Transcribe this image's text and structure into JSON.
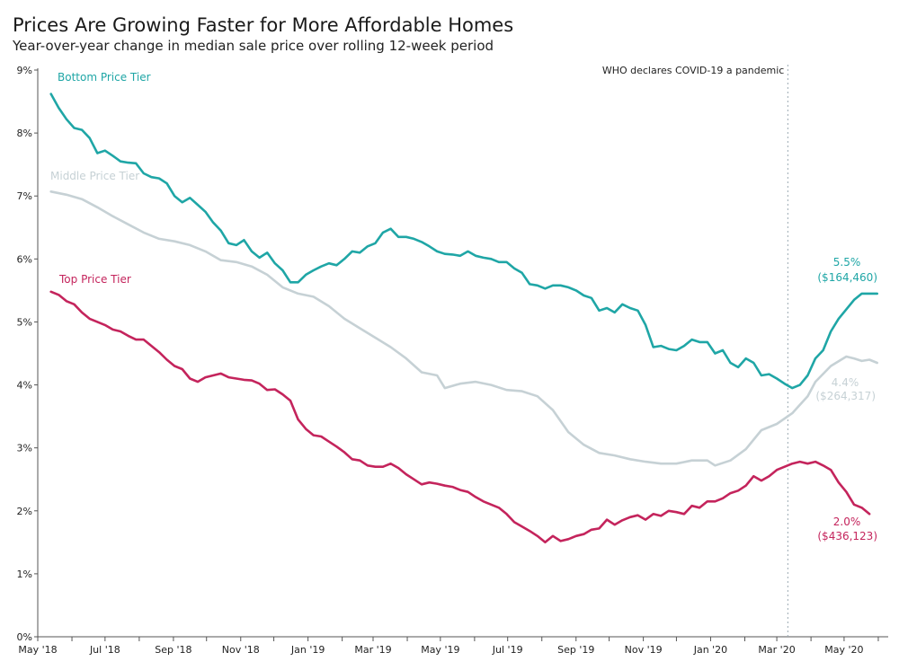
{
  "chart_data": {
    "type": "line",
    "title": "Prices Are Growing Faster for More Affordable Homes",
    "subtitle": "Year-over-year change in median sale price over rolling 12-week period",
    "xlabel": "",
    "ylabel": "",
    "ylim": [
      0,
      9
    ],
    "grid": false,
    "y_ticks": [
      "0%",
      "1%",
      "2%",
      "3%",
      "4%",
      "5%",
      "6%",
      "7%",
      "8%",
      "9%"
    ],
    "x_ticks": [
      "May '18",
      "Jul '18",
      "Sep '18",
      "Nov '18",
      "Jan '19",
      "Mar '19",
      "May '19",
      "Jul '19",
      "Sep '19",
      "Nov '19",
      "Jan '20",
      "Mar '20",
      "May '20"
    ],
    "annotation": {
      "x": "2020-03-11",
      "label": "WHO declares COVID-19 a pandemic"
    },
    "series": [
      {
        "name": "Bottom Price Tier",
        "color": "#1fa6a6",
        "end_value_label": "5.5%",
        "end_price_label": "($164,460)",
        "points": [
          [
            "2018-05-13",
            8.62
          ],
          [
            "2018-05-20",
            8.4
          ],
          [
            "2018-05-27",
            8.22
          ],
          [
            "2018-06-03",
            8.08
          ],
          [
            "2018-06-10",
            8.05
          ],
          [
            "2018-06-17",
            7.92
          ],
          [
            "2018-06-24",
            7.68
          ],
          [
            "2018-07-01",
            7.72
          ],
          [
            "2018-07-08",
            7.64
          ],
          [
            "2018-07-15",
            7.55
          ],
          [
            "2018-07-22",
            7.53
          ],
          [
            "2018-07-29",
            7.52
          ],
          [
            "2018-08-05",
            7.36
          ],
          [
            "2018-08-12",
            7.3
          ],
          [
            "2018-08-19",
            7.28
          ],
          [
            "2018-08-26",
            7.2
          ],
          [
            "2018-09-02",
            7.0
          ],
          [
            "2018-09-09",
            6.9
          ],
          [
            "2018-09-16",
            6.97
          ],
          [
            "2018-09-23",
            6.86
          ],
          [
            "2018-09-30",
            6.75
          ],
          [
            "2018-10-07",
            6.58
          ],
          [
            "2018-10-14",
            6.45
          ],
          [
            "2018-10-21",
            6.25
          ],
          [
            "2018-10-28",
            6.22
          ],
          [
            "2018-11-04",
            6.3
          ],
          [
            "2018-11-11",
            6.12
          ],
          [
            "2018-11-18",
            6.02
          ],
          [
            "2018-11-25",
            6.1
          ],
          [
            "2018-12-02",
            5.93
          ],
          [
            "2018-12-09",
            5.82
          ],
          [
            "2018-12-16",
            5.63
          ],
          [
            "2018-12-23",
            5.63
          ],
          [
            "2018-12-30",
            5.75
          ],
          [
            "2019-01-06",
            5.82
          ],
          [
            "2019-01-13",
            5.88
          ],
          [
            "2019-01-20",
            5.93
          ],
          [
            "2019-01-27",
            5.9
          ],
          [
            "2019-02-03",
            6.0
          ],
          [
            "2019-02-10",
            6.12
          ],
          [
            "2019-02-17",
            6.1
          ],
          [
            "2019-02-24",
            6.2
          ],
          [
            "2019-03-03",
            6.25
          ],
          [
            "2019-03-10",
            6.42
          ],
          [
            "2019-03-17",
            6.48
          ],
          [
            "2019-03-24",
            6.35
          ],
          [
            "2019-03-31",
            6.35
          ],
          [
            "2019-04-07",
            6.32
          ],
          [
            "2019-04-14",
            6.27
          ],
          [
            "2019-04-21",
            6.2
          ],
          [
            "2019-04-28",
            6.12
          ],
          [
            "2019-05-05",
            6.08
          ],
          [
            "2019-05-12",
            6.07
          ],
          [
            "2019-05-19",
            6.05
          ],
          [
            "2019-05-26",
            6.12
          ],
          [
            "2019-06-02",
            6.05
          ],
          [
            "2019-06-09",
            6.02
          ],
          [
            "2019-06-16",
            6.0
          ],
          [
            "2019-06-23",
            5.95
          ],
          [
            "2019-06-30",
            5.95
          ],
          [
            "2019-07-07",
            5.85
          ],
          [
            "2019-07-14",
            5.78
          ],
          [
            "2019-07-21",
            5.6
          ],
          [
            "2019-07-28",
            5.58
          ],
          [
            "2019-08-04",
            5.53
          ],
          [
            "2019-08-11",
            5.58
          ],
          [
            "2019-08-18",
            5.58
          ],
          [
            "2019-08-25",
            5.55
          ],
          [
            "2019-09-01",
            5.5
          ],
          [
            "2019-09-08",
            5.42
          ],
          [
            "2019-09-15",
            5.38
          ],
          [
            "2019-09-22",
            5.18
          ],
          [
            "2019-09-29",
            5.22
          ],
          [
            "2019-10-06",
            5.15
          ],
          [
            "2019-10-13",
            5.28
          ],
          [
            "2019-10-20",
            5.22
          ],
          [
            "2019-10-27",
            5.18
          ],
          [
            "2019-11-03",
            4.95
          ],
          [
            "2019-11-10",
            4.6
          ],
          [
            "2019-11-17",
            4.62
          ],
          [
            "2019-11-24",
            4.57
          ],
          [
            "2019-12-01",
            4.55
          ],
          [
            "2019-12-08",
            4.62
          ],
          [
            "2019-12-15",
            4.72
          ],
          [
            "2019-12-22",
            4.68
          ],
          [
            "2019-12-29",
            4.68
          ],
          [
            "2020-01-05",
            4.5
          ],
          [
            "2020-01-12",
            4.55
          ],
          [
            "2020-01-19",
            4.35
          ],
          [
            "2020-01-26",
            4.28
          ],
          [
            "2020-02-02",
            4.42
          ],
          [
            "2020-02-09",
            4.35
          ],
          [
            "2020-02-16",
            4.15
          ],
          [
            "2020-02-23",
            4.17
          ],
          [
            "2020-03-01",
            4.1
          ],
          [
            "2020-03-08",
            4.02
          ],
          [
            "2020-03-15",
            3.95
          ],
          [
            "2020-03-22",
            4.0
          ],
          [
            "2020-03-29",
            4.15
          ],
          [
            "2020-04-05",
            4.42
          ],
          [
            "2020-04-12",
            4.55
          ],
          [
            "2020-04-19",
            4.85
          ],
          [
            "2020-04-26",
            5.05
          ],
          [
            "2020-05-03",
            5.2
          ],
          [
            "2020-05-10",
            5.35
          ],
          [
            "2020-05-17",
            5.45
          ],
          [
            "2020-05-24",
            5.45
          ],
          [
            "2020-05-31",
            5.45
          ]
        ]
      },
      {
        "name": "Middle Price Tier",
        "color": "#c6d1d5",
        "end_value_label": "4.4%",
        "end_price_label": "($264,317)",
        "points": [
          [
            "2018-05-13",
            7.07
          ],
          [
            "2018-05-27",
            7.02
          ],
          [
            "2018-06-10",
            6.95
          ],
          [
            "2018-06-24",
            6.82
          ],
          [
            "2018-07-08",
            6.68
          ],
          [
            "2018-07-22",
            6.55
          ],
          [
            "2018-08-05",
            6.42
          ],
          [
            "2018-08-19",
            6.32
          ],
          [
            "2018-09-02",
            6.28
          ],
          [
            "2018-09-16",
            6.22
          ],
          [
            "2018-09-30",
            6.12
          ],
          [
            "2018-10-14",
            5.98
          ],
          [
            "2018-10-28",
            5.95
          ],
          [
            "2018-11-11",
            5.88
          ],
          [
            "2018-11-25",
            5.75
          ],
          [
            "2018-12-09",
            5.55
          ],
          [
            "2018-12-23",
            5.45
          ],
          [
            "2019-01-06",
            5.4
          ],
          [
            "2019-01-20",
            5.25
          ],
          [
            "2019-02-03",
            5.05
          ],
          [
            "2019-02-17",
            4.9
          ],
          [
            "2019-03-03",
            4.75
          ],
          [
            "2019-03-17",
            4.6
          ],
          [
            "2019-03-31",
            4.42
          ],
          [
            "2019-04-14",
            4.2
          ],
          [
            "2019-04-28",
            4.15
          ],
          [
            "2019-05-05",
            3.95
          ],
          [
            "2019-05-19",
            4.02
          ],
          [
            "2019-06-02",
            4.05
          ],
          [
            "2019-06-16",
            4.0
          ],
          [
            "2019-06-30",
            3.92
          ],
          [
            "2019-07-14",
            3.9
          ],
          [
            "2019-07-28",
            3.82
          ],
          [
            "2019-08-11",
            3.6
          ],
          [
            "2019-08-25",
            3.25
          ],
          [
            "2019-09-08",
            3.05
          ],
          [
            "2019-09-22",
            2.92
          ],
          [
            "2019-10-06",
            2.88
          ],
          [
            "2019-10-20",
            2.82
          ],
          [
            "2019-11-03",
            2.78
          ],
          [
            "2019-11-17",
            2.75
          ],
          [
            "2019-12-01",
            2.75
          ],
          [
            "2019-12-15",
            2.8
          ],
          [
            "2019-12-29",
            2.8
          ],
          [
            "2020-01-05",
            2.72
          ],
          [
            "2020-01-19",
            2.8
          ],
          [
            "2020-02-02",
            2.98
          ],
          [
            "2020-02-16",
            3.28
          ],
          [
            "2020-03-01",
            3.38
          ],
          [
            "2020-03-15",
            3.55
          ],
          [
            "2020-03-29",
            3.82
          ],
          [
            "2020-04-05",
            4.05
          ],
          [
            "2020-04-19",
            4.3
          ],
          [
            "2020-05-03",
            4.45
          ],
          [
            "2020-05-10",
            4.42
          ],
          [
            "2020-05-17",
            4.38
          ],
          [
            "2020-05-24",
            4.4
          ],
          [
            "2020-05-31",
            4.35
          ]
        ]
      },
      {
        "name": "Top Price Tier",
        "color": "#c4245c",
        "end_value_label": "2.0%",
        "end_price_label": "($436,123)",
        "points": [
          [
            "2018-05-13",
            5.48
          ],
          [
            "2018-05-20",
            5.43
          ],
          [
            "2018-05-27",
            5.33
          ],
          [
            "2018-06-03",
            5.28
          ],
          [
            "2018-06-10",
            5.15
          ],
          [
            "2018-06-17",
            5.05
          ],
          [
            "2018-06-24",
            5.0
          ],
          [
            "2018-07-01",
            4.95
          ],
          [
            "2018-07-08",
            4.88
          ],
          [
            "2018-07-15",
            4.85
          ],
          [
            "2018-07-22",
            4.78
          ],
          [
            "2018-07-29",
            4.72
          ],
          [
            "2018-08-05",
            4.72
          ],
          [
            "2018-08-12",
            4.62
          ],
          [
            "2018-08-19",
            4.52
          ],
          [
            "2018-08-26",
            4.4
          ],
          [
            "2018-09-02",
            4.3
          ],
          [
            "2018-09-09",
            4.25
          ],
          [
            "2018-09-16",
            4.1
          ],
          [
            "2018-09-23",
            4.05
          ],
          [
            "2018-09-30",
            4.12
          ],
          [
            "2018-10-07",
            4.15
          ],
          [
            "2018-10-14",
            4.18
          ],
          [
            "2018-10-21",
            4.12
          ],
          [
            "2018-10-28",
            4.1
          ],
          [
            "2018-11-04",
            4.08
          ],
          [
            "2018-11-11",
            4.07
          ],
          [
            "2018-11-18",
            4.02
          ],
          [
            "2018-11-25",
            3.92
          ],
          [
            "2018-12-02",
            3.93
          ],
          [
            "2018-12-09",
            3.85
          ],
          [
            "2018-12-16",
            3.75
          ],
          [
            "2018-12-23",
            3.45
          ],
          [
            "2018-12-30",
            3.3
          ],
          [
            "2019-01-06",
            3.2
          ],
          [
            "2019-01-13",
            3.18
          ],
          [
            "2019-01-20",
            3.1
          ],
          [
            "2019-01-27",
            3.02
          ],
          [
            "2019-02-03",
            2.93
          ],
          [
            "2019-02-10",
            2.82
          ],
          [
            "2019-02-17",
            2.8
          ],
          [
            "2019-02-24",
            2.72
          ],
          [
            "2019-03-03",
            2.7
          ],
          [
            "2019-03-10",
            2.7
          ],
          [
            "2019-03-17",
            2.75
          ],
          [
            "2019-03-24",
            2.68
          ],
          [
            "2019-03-31",
            2.58
          ],
          [
            "2019-04-07",
            2.5
          ],
          [
            "2019-04-14",
            2.42
          ],
          [
            "2019-04-21",
            2.45
          ],
          [
            "2019-04-28",
            2.43
          ],
          [
            "2019-05-05",
            2.4
          ],
          [
            "2019-05-12",
            2.38
          ],
          [
            "2019-05-19",
            2.33
          ],
          [
            "2019-05-26",
            2.3
          ],
          [
            "2019-06-02",
            2.22
          ],
          [
            "2019-06-09",
            2.15
          ],
          [
            "2019-06-16",
            2.1
          ],
          [
            "2019-06-23",
            2.05
          ],
          [
            "2019-06-30",
            1.95
          ],
          [
            "2019-07-07",
            1.82
          ],
          [
            "2019-07-14",
            1.75
          ],
          [
            "2019-07-21",
            1.68
          ],
          [
            "2019-07-28",
            1.6
          ],
          [
            "2019-08-04",
            1.5
          ],
          [
            "2019-08-11",
            1.6
          ],
          [
            "2019-08-18",
            1.52
          ],
          [
            "2019-08-25",
            1.55
          ],
          [
            "2019-09-01",
            1.6
          ],
          [
            "2019-09-08",
            1.63
          ],
          [
            "2019-09-15",
            1.7
          ],
          [
            "2019-09-22",
            1.72
          ],
          [
            "2019-09-29",
            1.86
          ],
          [
            "2019-10-06",
            1.78
          ],
          [
            "2019-10-13",
            1.85
          ],
          [
            "2019-10-20",
            1.9
          ],
          [
            "2019-10-27",
            1.93
          ],
          [
            "2019-11-03",
            1.86
          ],
          [
            "2019-11-10",
            1.95
          ],
          [
            "2019-11-17",
            1.92
          ],
          [
            "2019-11-24",
            2.0
          ],
          [
            "2019-12-01",
            1.98
          ],
          [
            "2019-12-08",
            1.95
          ],
          [
            "2019-12-15",
            2.08
          ],
          [
            "2019-12-22",
            2.05
          ],
          [
            "2019-12-29",
            2.15
          ],
          [
            "2020-01-05",
            2.15
          ],
          [
            "2020-01-12",
            2.2
          ],
          [
            "2020-01-19",
            2.28
          ],
          [
            "2020-01-26",
            2.32
          ],
          [
            "2020-02-02",
            2.4
          ],
          [
            "2020-02-09",
            2.55
          ],
          [
            "2020-02-16",
            2.48
          ],
          [
            "2020-02-23",
            2.55
          ],
          [
            "2020-03-01",
            2.65
          ],
          [
            "2020-03-08",
            2.7
          ],
          [
            "2020-03-15",
            2.75
          ],
          [
            "2020-03-22",
            2.78
          ],
          [
            "2020-03-29",
            2.75
          ],
          [
            "2020-04-05",
            2.78
          ],
          [
            "2020-04-12",
            2.72
          ],
          [
            "2020-04-19",
            2.65
          ],
          [
            "2020-04-26",
            2.45
          ],
          [
            "2020-05-03",
            2.3
          ],
          [
            "2020-05-10",
            2.1
          ],
          [
            "2020-05-17",
            2.05
          ],
          [
            "2020-05-24",
            1.95
          ]
        ]
      }
    ]
  }
}
